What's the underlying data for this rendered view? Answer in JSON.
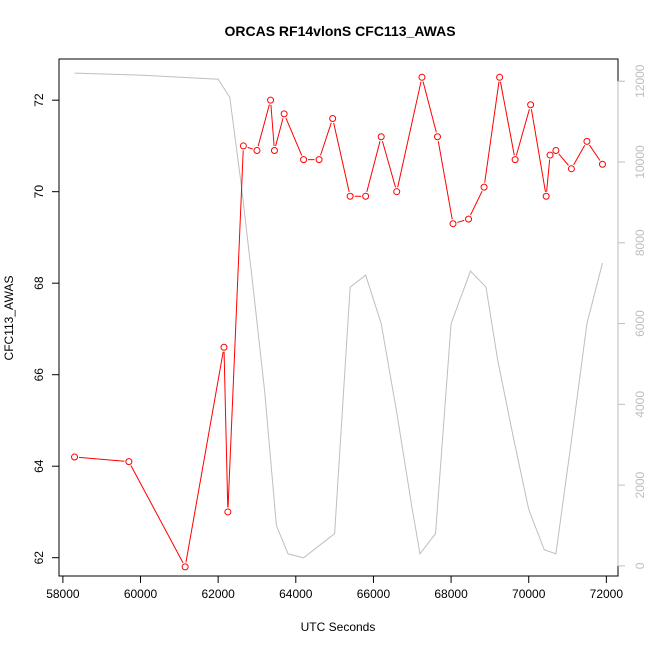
{
  "chart_data": {
    "type": "line",
    "title": "ORCAS RF14vlonS CFC113_AWAS",
    "xlabel": "UTC Seconds",
    "ylabel": "CFC113_AWAS",
    "xlim": [
      57900,
      72300
    ],
    "ylim": [
      61.6,
      72.9
    ],
    "y2lim": [
      -250,
      12550
    ],
    "x_ticks": [
      58000,
      60000,
      62000,
      64000,
      66000,
      68000,
      70000,
      72000
    ],
    "y_ticks": [
      62,
      64,
      66,
      68,
      70,
      72
    ],
    "y2_ticks": [
      0,
      2000,
      4000,
      6000,
      8000,
      10000,
      12000
    ],
    "grid": false,
    "series": [
      {
        "color": "#ff0000",
        "marker": "open-circle",
        "axis": "left",
        "x": [
          58300,
          59700,
          61150,
          62150,
          62250,
          62650,
          63000,
          63350,
          63450,
          63700,
          64200,
          64600,
          64950,
          65400,
          65800,
          66200,
          66600,
          67250,
          67650,
          68050,
          68450,
          68850,
          69250,
          69650,
          70050,
          70450,
          70550,
          70700,
          71100,
          71500,
          71900
        ],
        "y": [
          64.2,
          64.1,
          61.8,
          66.6,
          63.0,
          71.0,
          70.9,
          72.0,
          70.9,
          71.7,
          70.7,
          70.7,
          71.6,
          69.9,
          69.9,
          71.2,
          70.0,
          72.5,
          71.2,
          69.3,
          69.4,
          70.1,
          72.5,
          70.7,
          71.9,
          69.9,
          70.8,
          70.9,
          70.5,
          71.1,
          70.6
        ]
      },
      {
        "color": "#bebebe",
        "marker": "none",
        "axis": "right",
        "x": [
          58300,
          60000,
          62000,
          62300,
          62600,
          62900,
          63200,
          63400,
          63500,
          63800,
          64200,
          65000,
          65400,
          65800,
          66200,
          66600,
          67000,
          67200,
          67600,
          68000,
          68500,
          68900,
          69200,
          69600,
          70000,
          70400,
          70700,
          71100,
          71500,
          71900
        ],
        "y": [
          12200,
          12150,
          12050,
          11600,
          9400,
          6900,
          4300,
          2100,
          1000,
          300,
          200,
          800,
          6900,
          7200,
          6000,
          3800,
          1400,
          300,
          800,
          6000,
          7300,
          6900,
          5100,
          3200,
          1400,
          400,
          300,
          3100,
          6000,
          7500
        ]
      }
    ]
  }
}
